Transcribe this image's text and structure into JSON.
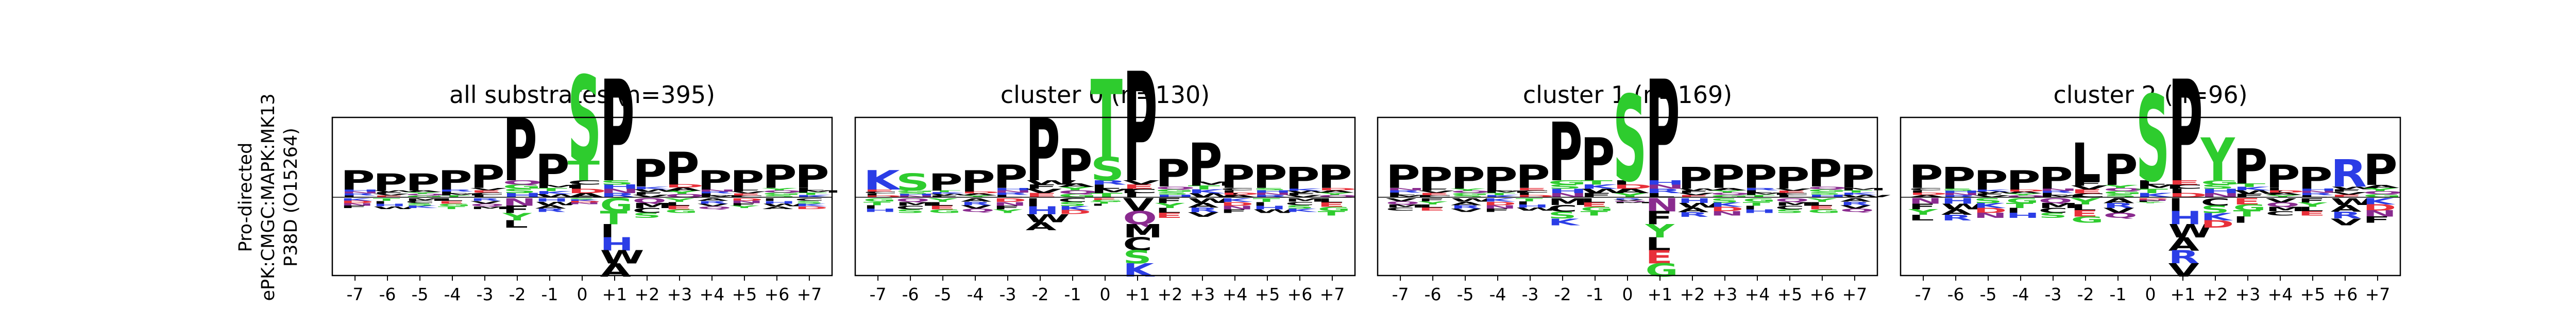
{
  "row_label": [
    "Pro-directed",
    "ePK:CMGC:MAPK:MK13",
    "P38D (O15264)"
  ],
  "colors": {
    "S": "#2ecc2e",
    "T": "#2ecc2e",
    "P": "#000000",
    "acidic": "#e8303a",
    "basic": "#2b3de6",
    "hydrophobic": "#000000",
    "polar": "#8a2b8f",
    "neutral": "#2ecc2e"
  },
  "chart_data": [
    {
      "type": "sequence-logo",
      "title": "all substrates (n=395)",
      "positions": [
        "-7",
        "-6",
        "-5",
        "-4",
        "-3",
        "-2",
        "-1",
        "0",
        "+1",
        "+2",
        "+3",
        "+4",
        "+5",
        "+6",
        "+7"
      ],
      "top_letters": [
        "P",
        "P",
        "P",
        "P",
        "P",
        "P",
        "P",
        "S",
        "P",
        "P",
        "P",
        "P",
        "P",
        "P",
        "P"
      ],
      "top_heights": [
        0.25,
        0.22,
        0.22,
        0.25,
        0.3,
        0.8,
        0.4,
        1.1,
        1.3,
        0.35,
        0.42,
        0.25,
        0.25,
        0.3,
        0.3
      ],
      "secondary_letters": [
        "",
        "",
        "",
        "",
        "",
        "",
        "",
        "T",
        "",
        "",
        "",
        "",
        "",
        "",
        ""
      ],
      "secondary_heights": [
        0,
        0,
        0,
        0,
        0,
        0,
        0,
        0.25,
        0,
        0,
        0,
        0,
        0,
        0,
        0
      ],
      "depletion": [
        0.2,
        0.22,
        0.2,
        0.22,
        0.22,
        0.6,
        0.28,
        0.12,
        1.6,
        0.4,
        0.3,
        0.22,
        0.2,
        0.22,
        0.22
      ]
    },
    {
      "type": "sequence-logo",
      "title": "cluster 0 (n=130)",
      "positions": [
        "-7",
        "-6",
        "-5",
        "-4",
        "-3",
        "-2",
        "-1",
        "0",
        "+1",
        "+2",
        "+3",
        "+4",
        "+5",
        "+6",
        "+7"
      ],
      "top_letters": [
        "K",
        "S",
        "P",
        "P",
        "P",
        "P",
        "P",
        "T",
        "P",
        "P",
        "P",
        "P",
        "P",
        "P",
        "P"
      ],
      "top_heights": [
        0.25,
        0.22,
        0.22,
        0.25,
        0.3,
        0.8,
        0.45,
        1.0,
        1.4,
        0.35,
        0.5,
        0.3,
        0.3,
        0.28,
        0.3
      ],
      "secondary_letters": [
        "",
        "",
        "",
        "",
        "",
        "",
        "",
        "S",
        "",
        "",
        "",
        "",
        "",
        "",
        ""
      ],
      "secondary_heights": [
        0,
        0,
        0,
        0,
        0,
        0,
        0,
        0.3,
        0,
        0,
        0,
        0,
        0,
        0,
        0
      ],
      "depletion": [
        0.28,
        0.3,
        0.3,
        0.28,
        0.3,
        0.65,
        0.32,
        0.15,
        1.6,
        0.4,
        0.38,
        0.3,
        0.3,
        0.28,
        0.35
      ]
    },
    {
      "type": "sequence-logo",
      "title": "cluster 1 (n=169)",
      "positions": [
        "-7",
        "-6",
        "-5",
        "-4",
        "-3",
        "-2",
        "-1",
        "0",
        "+1",
        "+2",
        "+3",
        "+4",
        "+5",
        "+6",
        "+7"
      ],
      "top_letters": [
        "P",
        "P",
        "P",
        "P",
        "P",
        "P",
        "P",
        "S",
        "P",
        "P",
        "P",
        "P",
        "P",
        "P",
        "P"
      ],
      "top_heights": [
        0.3,
        0.28,
        0.28,
        0.28,
        0.3,
        0.75,
        0.55,
        1.1,
        1.3,
        0.28,
        0.3,
        0.3,
        0.28,
        0.35,
        0.3
      ],
      "secondary_letters": [
        "",
        "",
        "",
        "",
        "",
        "",
        "",
        "",
        "",
        "",
        "",
        "",
        "",
        "",
        ""
      ],
      "secondary_heights": [
        0,
        0,
        0,
        0,
        0,
        0,
        0,
        0,
        0,
        0,
        0,
        0,
        0,
        0,
        0
      ],
      "depletion": [
        0.25,
        0.25,
        0.28,
        0.28,
        0.25,
        0.55,
        0.35,
        0.1,
        1.6,
        0.38,
        0.35,
        0.3,
        0.3,
        0.3,
        0.28
      ]
    },
    {
      "type": "sequence-logo",
      "title": "cluster 2 (n=96)",
      "positions": [
        "-7",
        "-6",
        "-5",
        "-4",
        "-3",
        "-2",
        "-1",
        "0",
        "+1",
        "+2",
        "+3",
        "+4",
        "+5",
        "+6",
        "+7"
      ],
      "top_letters": [
        "P",
        "P",
        "P",
        "P",
        "P",
        "L",
        "P",
        "S",
        "P",
        "Y",
        "P",
        "P",
        "P",
        "R",
        "P"
      ],
      "top_heights": [
        0.3,
        0.28,
        0.25,
        0.25,
        0.28,
        0.5,
        0.4,
        1.1,
        1.3,
        0.55,
        0.45,
        0.3,
        0.28,
        0.35,
        0.4
      ],
      "secondary_letters": [
        "",
        "",
        "",
        "",
        "",
        "",
        "",
        "",
        "",
        "",
        "",
        "",
        "",
        "",
        ""
      ],
      "secondary_heights": [
        0,
        0,
        0,
        0,
        0,
        0,
        0,
        0,
        0,
        0,
        0,
        0,
        0,
        0,
        0
      ],
      "depletion": [
        0.45,
        0.45,
        0.4,
        0.4,
        0.4,
        0.5,
        0.4,
        0.1,
        1.6,
        0.6,
        0.5,
        0.35,
        0.35,
        0.55,
        0.5
      ]
    }
  ]
}
